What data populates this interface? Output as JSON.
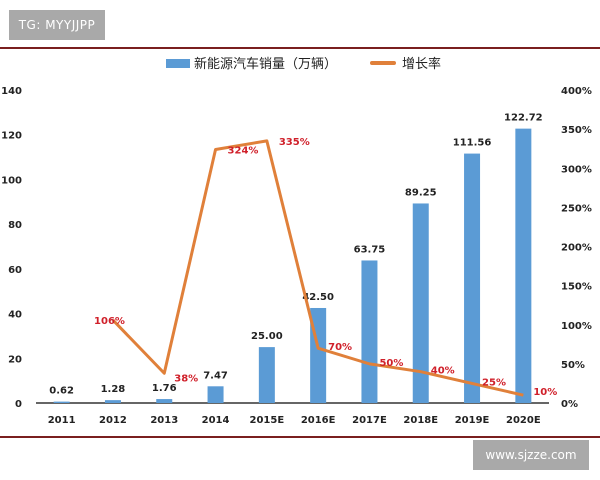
{
  "header_tag": "TG: MYYJJPP",
  "watermark": "www.sjzze.com",
  "chart_data": {
    "type": "bar+line",
    "categories": [
      "2011",
      "2012",
      "2013",
      "2014",
      "2015E",
      "2016E",
      "2017E",
      "2018E",
      "2019E",
      "2020E"
    ],
    "series": [
      {
        "name": "新能源汽车销量（万辆）",
        "type": "bar",
        "axis": "left",
        "color": "#5b9bd5",
        "values": [
          0.62,
          1.28,
          1.76,
          7.47,
          25.0,
          42.5,
          63.75,
          89.25,
          111.56,
          122.72
        ],
        "labels": [
          "0.62",
          "1.28",
          "1.76",
          "7.47",
          "25.00",
          "42.50",
          "63.75",
          "89.25",
          "111.56",
          "122.72"
        ]
      },
      {
        "name": "增长率",
        "type": "line",
        "axis": "right",
        "color": "#e0803a",
        "values": [
          null,
          106,
          38,
          324,
          335,
          70,
          50,
          40,
          25,
          10
        ],
        "labels": [
          null,
          "106%",
          "38%",
          "324%",
          "335%",
          "70%",
          "50%",
          "40%",
          "25%",
          "10%"
        ],
        "label_color": "#d0202a"
      }
    ],
    "left_axis": {
      "ylim": [
        0,
        140
      ],
      "ticks": [
        "0",
        "20",
        "40",
        "60",
        "80",
        "100",
        "120",
        "140"
      ]
    },
    "right_axis": {
      "ylim": [
        0,
        400
      ],
      "unit": "%",
      "ticks": [
        "0%",
        "50%",
        "100%",
        "150%",
        "200%",
        "250%",
        "300%",
        "350%",
        "400%"
      ]
    },
    "legend": "top-center",
    "grid": false
  }
}
